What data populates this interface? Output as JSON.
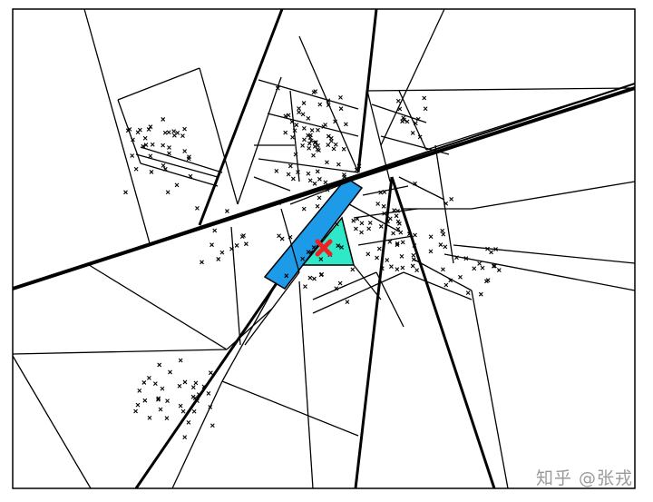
{
  "diagram": {
    "description_labels": [],
    "highlight_colors": {
      "leaf_cell": "#1e9be8",
      "neighbor_cell": "#2ee8c8",
      "query_point": "#ee2222",
      "points": "#000000",
      "lines": "#000000"
    },
    "icons": [
      "query-point-cross-icon",
      "data-point-x-icon"
    ]
  },
  "watermark": {
    "text": "知乎 @张戎"
  }
}
